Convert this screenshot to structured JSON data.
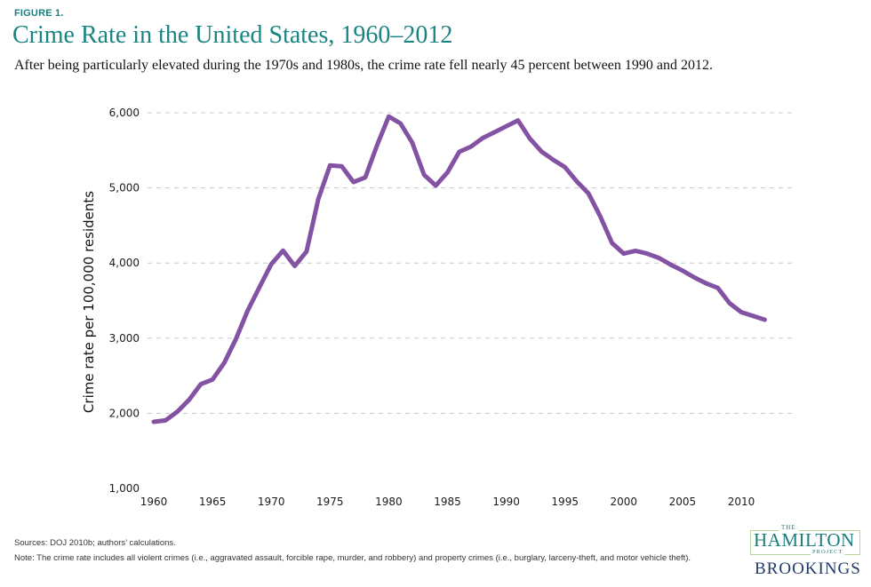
{
  "header": {
    "figure_label": "FIGURE 1.",
    "title": "Crime Rate in the United States, 1960–2012",
    "subtitle": "After being particularly elevated during the 1970s and 1980s, the crime rate fell nearly 45 percent between 1990 and 2012."
  },
  "footer": {
    "sources": "Sources: DOJ 2010b; authors’ calculations.",
    "note": "Note: The crime rate includes all violent crimes (i.e., aggravated assault, forcible rape, murder, and robbery) and property crimes (i.e., burglary, larceny-theft, and motor vehicle theft)."
  },
  "logo": {
    "the": "THE",
    "hamilton": "HAMILTON",
    "project": "PROJECT",
    "brookings": "BROOKINGS"
  },
  "colors": {
    "line": "#8352a3",
    "grid": "#c8c8c8",
    "title": "#1a8482"
  },
  "chart_data": {
    "type": "line",
    "title": "Crime Rate in the United States, 1960–2012",
    "xlabel": "",
    "ylabel": "Crime rate per 100,000 residents",
    "xlim": [
      1960,
      2012
    ],
    "ylim": [
      1000,
      6000
    ],
    "grid": "horizontal dashed",
    "legend": "none",
    "x_ticks": [
      "1960",
      "1965",
      "1970",
      "1975",
      "1980",
      "1985",
      "1990",
      "1995",
      "2000",
      "2005",
      "2010"
    ],
    "y_ticks": [
      "1,000",
      "2,000",
      "3,000",
      "4,000",
      "5,000",
      "6,000"
    ],
    "series": [
      {
        "name": "Crime rate",
        "x": [
          1960,
          1961,
          1962,
          1963,
          1964,
          1965,
          1966,
          1967,
          1968,
          1969,
          1970,
          1971,
          1972,
          1973,
          1974,
          1975,
          1976,
          1977,
          1978,
          1979,
          1980,
          1981,
          1982,
          1983,
          1984,
          1985,
          1986,
          1987,
          1988,
          1989,
          1990,
          1991,
          1992,
          1993,
          1994,
          1995,
          1996,
          1997,
          1998,
          1999,
          2000,
          2001,
          2002,
          2003,
          2004,
          2005,
          2006,
          2007,
          2008,
          2009,
          2010,
          2011,
          2012
        ],
        "values": [
          1887,
          1906,
          2020,
          2180,
          2388,
          2449,
          2671,
          2990,
          3370,
          3680,
          3985,
          4165,
          3961,
          4154,
          4850,
          5299,
          5287,
          5078,
          5140,
          5566,
          5950,
          5858,
          5604,
          5175,
          5031,
          5207,
          5480,
          5550,
          5664,
          5741,
          5820,
          5898,
          5660,
          5484,
          5374,
          5276,
          5087,
          4927,
          4620,
          4267,
          4125,
          4163,
          4125,
          4067,
          3977,
          3900,
          3808,
          3730,
          3669,
          3466,
          3346,
          3295,
          3246
        ]
      }
    ]
  }
}
